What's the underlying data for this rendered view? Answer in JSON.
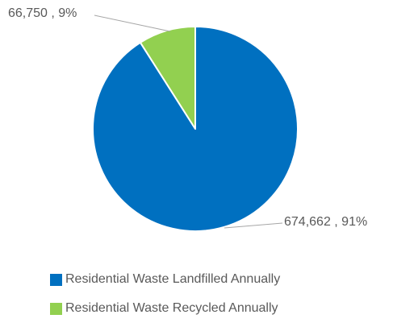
{
  "chart_data": {
    "type": "pie",
    "title": "",
    "slices": [
      {
        "name": "Residential Waste Landfilled Annually",
        "value": 674662,
        "percent": 91,
        "label": "674,662 , 91%",
        "color": "#0070C0"
      },
      {
        "name": "Residential Waste Recycled Annually",
        "value": 66750,
        "percent": 9,
        "label": "66,750 , 9%",
        "color": "#92D050"
      }
    ],
    "legend_placement": "bottom"
  }
}
